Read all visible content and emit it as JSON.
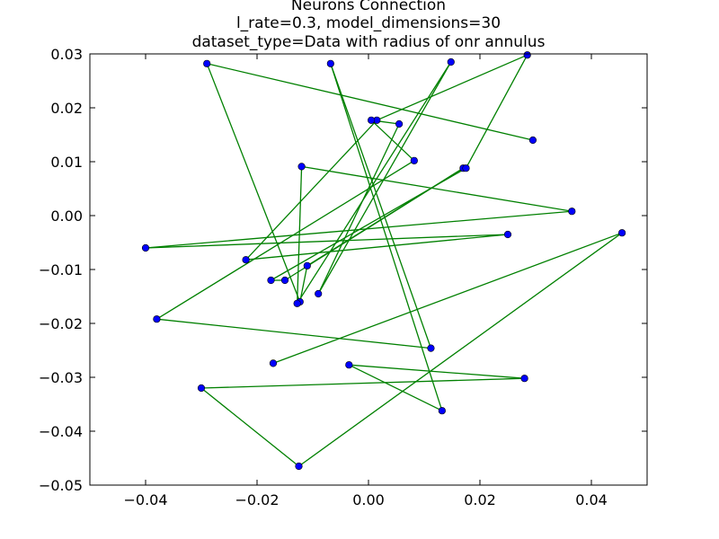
{
  "chart_data": {
    "type": "line",
    "title_lines": [
      "Neurons Connection",
      "l_rate=0.3, model_dimensions=30",
      "dataset_type=Data with radius of onr annulus"
    ],
    "xlabel": "",
    "ylabel": "",
    "xlim": [
      -0.05,
      0.05
    ],
    "ylim": [
      -0.05,
      0.03
    ],
    "x_ticks": [
      -0.04,
      -0.02,
      0.0,
      0.02,
      0.04
    ],
    "x_tick_labels": [
      "−0.04",
      "−0.02",
      "0.00",
      "0.02",
      "0.04"
    ],
    "y_ticks": [
      0.03,
      0.02,
      0.01,
      0.0,
      -0.01,
      -0.02,
      -0.03,
      -0.04,
      -0.05
    ],
    "y_tick_labels": [
      "0.03",
      "0.02",
      "0.01",
      "0.00",
      "−0.01",
      "−0.02",
      "−0.03",
      "−0.04",
      "−0.05"
    ],
    "grid": false,
    "line_color": "#008000",
    "marker_color": "#0000ff",
    "series": [
      {
        "x": [
          0.0295,
          -0.029,
          -0.0123,
          -0.011,
          0.017,
          -0.015,
          -0.0175,
          0.0175,
          0.0285,
          0.0015,
          -0.022,
          0.025,
          -0.04,
          0.0365,
          -0.012,
          -0.0128,
          0.0148,
          -0.009,
          0.0055,
          0.0005,
          0.0082,
          -0.038,
          0.0112,
          -0.0068,
          0.0132,
          -0.0035,
          0.028,
          -0.03,
          -0.0125,
          0.0455,
          -0.0171
        ],
        "y": [
          0.014,
          0.0282,
          -0.016,
          -0.0093,
          0.0088,
          -0.012,
          -0.012,
          0.0088,
          0.0298,
          0.0177,
          -0.0082,
          -0.0035,
          -0.006,
          0.0008,
          0.0091,
          -0.0163,
          0.0285,
          -0.0145,
          0.017,
          0.0177,
          0.0102,
          -0.0192,
          -0.0246,
          0.0282,
          -0.0362,
          -0.0277,
          -0.0302,
          -0.032,
          -0.0465,
          -0.0032,
          -0.0274
        ]
      }
    ]
  }
}
